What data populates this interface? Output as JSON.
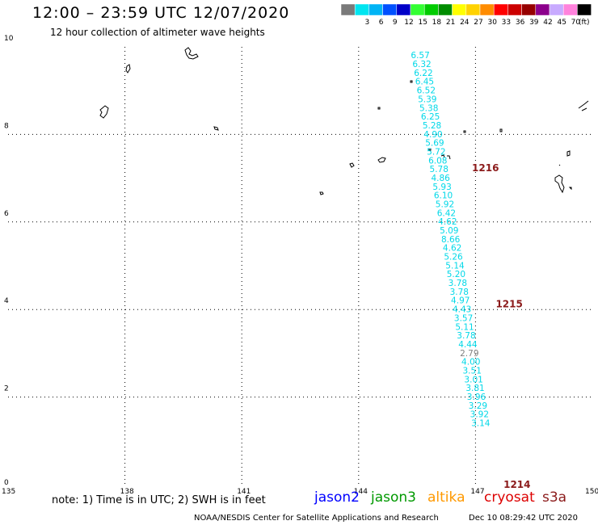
{
  "header": {
    "title": "12:00 – 23:59 UTC 12/07/2020",
    "subtitle": "12 hour collection of altimeter wave heights"
  },
  "legend": {
    "unit": "(ft)",
    "classes": [
      {
        "label": "",
        "color": "#7a7a7a"
      },
      {
        "label": "3",
        "color": "#00e5f0"
      },
      {
        "label": "6",
        "color": "#00b4f5"
      },
      {
        "label": "9",
        "color": "#0050ff"
      },
      {
        "label": "12",
        "color": "#0000c8"
      },
      {
        "label": "15",
        "color": "#33ff33"
      },
      {
        "label": "18",
        "color": "#00cc00"
      },
      {
        "label": "21",
        "color": "#008c00"
      },
      {
        "label": "24",
        "color": "#ffff00"
      },
      {
        "label": "27",
        "color": "#ffd200"
      },
      {
        "label": "30",
        "color": "#ff8c00"
      },
      {
        "label": "33",
        "color": "#ff0000"
      },
      {
        "label": "36",
        "color": "#cc0000"
      },
      {
        "label": "39",
        "color": "#960000"
      },
      {
        "label": "42",
        "color": "#8c008c"
      },
      {
        "label": "45",
        "color": "#c8aaff"
      },
      {
        "label": "70",
        "color": "#ff82dc"
      },
      {
        "label": "",
        "color": "#000000"
      }
    ]
  },
  "map": {
    "lon_range": [
      135,
      150
    ],
    "lat_range": [
      0,
      10
    ],
    "grid_lons": [
      138,
      141,
      144,
      147
    ],
    "grid_lats": [
      2,
      4,
      6,
      8
    ],
    "lon_labels": [
      "135",
      "138",
      "141",
      "144",
      "147",
      "150"
    ],
    "lat_labels": [
      "0",
      "2",
      "4",
      "6",
      "8",
      "10"
    ]
  },
  "track": {
    "color": "#00d8e8",
    "anomaly_color": "#808080",
    "points": [
      {
        "lon": 145.61,
        "lat": 9.83,
        "swh": "6.57"
      },
      {
        "lon": 145.65,
        "lat": 9.63,
        "swh": "6.32"
      },
      {
        "lon": 145.69,
        "lat": 9.43,
        "swh": "6.22"
      },
      {
        "lon": 145.72,
        "lat": 9.23,
        "swh": "6.45"
      },
      {
        "lon": 145.76,
        "lat": 9.03,
        "swh": "6.52"
      },
      {
        "lon": 145.79,
        "lat": 8.83,
        "swh": "5.39"
      },
      {
        "lon": 145.83,
        "lat": 8.63,
        "swh": "5.38"
      },
      {
        "lon": 145.87,
        "lat": 8.43,
        "swh": "6.25"
      },
      {
        "lon": 145.91,
        "lat": 8.23,
        "swh": "5.28"
      },
      {
        "lon": 145.94,
        "lat": 8.03,
        "swh": "4.90"
      },
      {
        "lon": 145.98,
        "lat": 7.83,
        "swh": "5.69"
      },
      {
        "lon": 146.02,
        "lat": 7.63,
        "swh": "5.72"
      },
      {
        "lon": 146.06,
        "lat": 7.43,
        "swh": "6.08"
      },
      {
        "lon": 146.09,
        "lat": 7.23,
        "swh": "5.78"
      },
      {
        "lon": 146.13,
        "lat": 7.03,
        "swh": "4.86"
      },
      {
        "lon": 146.17,
        "lat": 6.83,
        "swh": "5.93"
      },
      {
        "lon": 146.2,
        "lat": 6.63,
        "swh": "6.10"
      },
      {
        "lon": 146.24,
        "lat": 6.43,
        "swh": "5.92"
      },
      {
        "lon": 146.28,
        "lat": 6.23,
        "swh": "6.42"
      },
      {
        "lon": 146.31,
        "lat": 6.03,
        "swh": "4.62"
      },
      {
        "lon": 146.35,
        "lat": 5.83,
        "swh": "5.09"
      },
      {
        "lon": 146.39,
        "lat": 5.63,
        "swh": "8.66"
      },
      {
        "lon": 146.43,
        "lat": 5.43,
        "swh": "4.62"
      },
      {
        "lon": 146.46,
        "lat": 5.23,
        "swh": "5.26"
      },
      {
        "lon": 146.5,
        "lat": 5.03,
        "swh": "5.14"
      },
      {
        "lon": 146.53,
        "lat": 4.83,
        "swh": "5.20"
      },
      {
        "lon": 146.57,
        "lat": 4.63,
        "swh": "3.78"
      },
      {
        "lon": 146.61,
        "lat": 4.43,
        "swh": "3.78"
      },
      {
        "lon": 146.64,
        "lat": 4.23,
        "swh": "4.97"
      },
      {
        "lon": 146.68,
        "lat": 4.03,
        "swh": "4.43"
      },
      {
        "lon": 146.72,
        "lat": 3.83,
        "swh": "3.57"
      },
      {
        "lon": 146.75,
        "lat": 3.63,
        "swh": "5.11"
      },
      {
        "lon": 146.79,
        "lat": 3.43,
        "swh": "3.78"
      },
      {
        "lon": 146.83,
        "lat": 3.23,
        "swh": "4.44"
      },
      {
        "lon": 146.87,
        "lat": 3.03,
        "swh": "2.79"
      },
      {
        "lon": 146.91,
        "lat": 2.83,
        "swh": "4.00"
      },
      {
        "lon": 146.94,
        "lat": 2.63,
        "swh": "3.51"
      },
      {
        "lon": 146.98,
        "lat": 2.43,
        "swh": "3.01"
      },
      {
        "lon": 147.02,
        "lat": 2.23,
        "swh": "3.81"
      },
      {
        "lon": 147.05,
        "lat": 2.03,
        "swh": "3.96"
      },
      {
        "lon": 147.09,
        "lat": 1.83,
        "swh": "3.29"
      },
      {
        "lon": 147.13,
        "lat": 1.63,
        "swh": "3.92"
      },
      {
        "lon": 147.16,
        "lat": 1.43,
        "swh": "3.14"
      }
    ]
  },
  "time_labels": [
    {
      "text": "1216",
      "lon": 146.91,
      "lat": 7.25
    },
    {
      "text": "1215",
      "lon": 147.52,
      "lat": 4.14
    },
    {
      "text": "1214",
      "lon": 147.72,
      "lat": 0.02
    }
  ],
  "time_label_color": "#8b1a1a",
  "footer": {
    "note": "note: 1) Time is in UTC; 2) SWH is in feet",
    "missions": [
      {
        "name": "jason2",
        "color": "#0000ff"
      },
      {
        "name": "jason3",
        "color": "#009900"
      },
      {
        "name": "altika",
        "color": "#ff9900"
      },
      {
        "name": "cryosat",
        "color": "#dd0000"
      },
      {
        "name": "s3a",
        "color": "#8b1a1a"
      }
    ],
    "credit": "NOAA/NESDIS Center for Satellite Applications and Research",
    "timestamp": "Dec 10 08:29:42 UTC 2020"
  }
}
